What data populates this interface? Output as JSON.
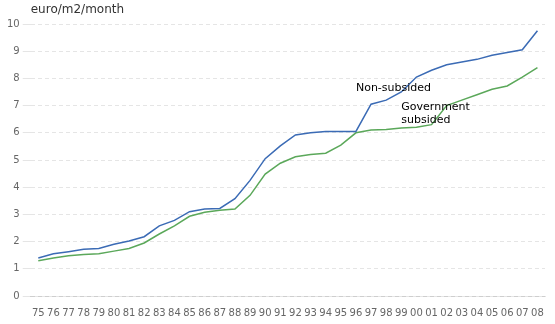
{
  "chart_data": {
    "type": "line",
    "ylabel": "euro/m2/month",
    "categories": [
      "75",
      "76",
      "77",
      "78",
      "79",
      "80",
      "81",
      "82",
      "83",
      "84",
      "85",
      "86",
      "87",
      "88",
      "89",
      "90",
      "91",
      "92",
      "93",
      "94",
      "95",
      "96",
      "97",
      "98",
      "99",
      "00",
      "01",
      "02",
      "03",
      "04",
      "05",
      "06",
      "07",
      "08"
    ],
    "series": [
      {
        "color": "#3B6BB5",
        "values": [
          1.4,
          1.55,
          1.63,
          1.72,
          1.75,
          1.9,
          2.02,
          2.18,
          2.58,
          2.78,
          3.1,
          3.2,
          3.22,
          3.58,
          4.25,
          5.05,
          5.52,
          5.92,
          6.0,
          6.05,
          6.05,
          6.05,
          7.05,
          7.2,
          7.5,
          8.05,
          8.3,
          8.5,
          8.6,
          8.7,
          8.85,
          8.95,
          9.05,
          9.75
        ]
      },
      {
        "color": "#5BA85A",
        "values": [
          1.3,
          1.4,
          1.48,
          1.53,
          1.55,
          1.65,
          1.75,
          1.95,
          2.28,
          2.58,
          2.93,
          3.08,
          3.15,
          3.2,
          3.7,
          4.48,
          4.88,
          5.12,
          5.2,
          5.25,
          5.55,
          6.0,
          6.1,
          6.12,
          6.18,
          6.2,
          6.3,
          7.0,
          7.2,
          7.4,
          7.6,
          7.72,
          8.05,
          8.4
        ]
      }
    ],
    "annotations": [
      {
        "text": "Non-subsided",
        "x": "96",
        "y": 7.55
      },
      {
        "text": "Government\nsubsided",
        "x": "99",
        "y": 6.35
      }
    ],
    "ylim": [
      0,
      10
    ],
    "yticks": [
      0,
      1,
      2,
      3,
      4,
      5,
      6,
      7,
      8,
      9,
      10
    ],
    "grid": true
  }
}
